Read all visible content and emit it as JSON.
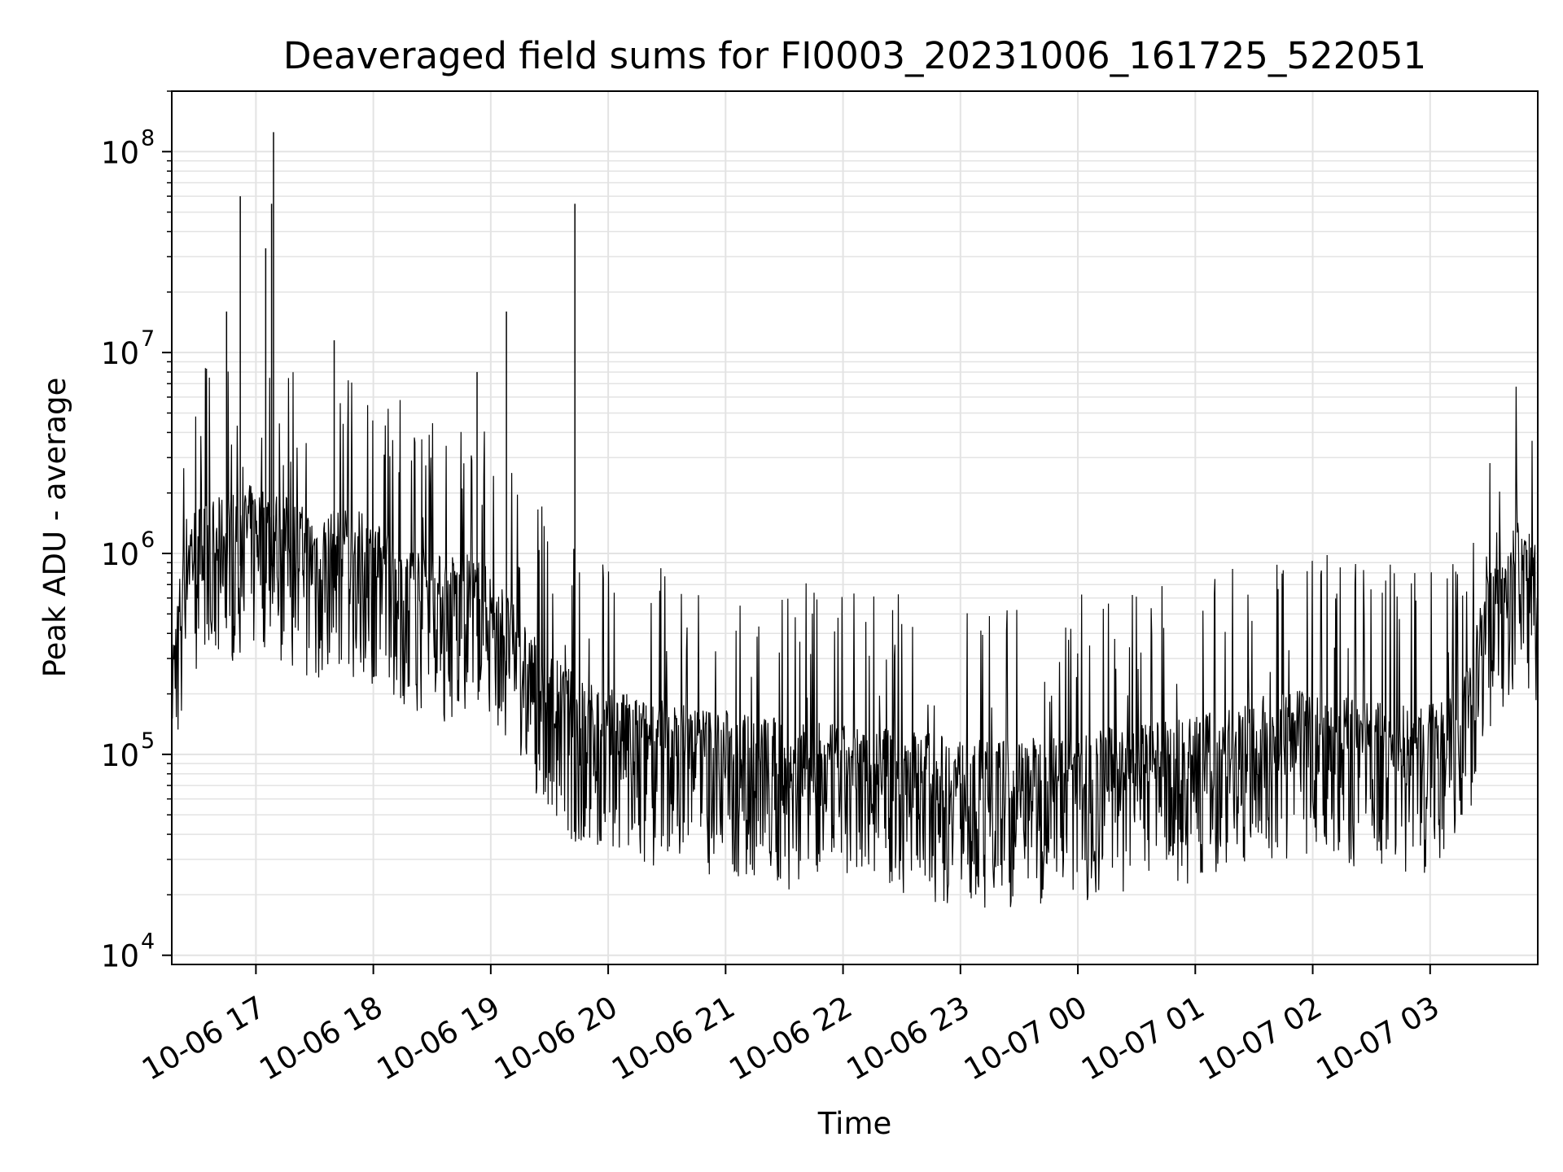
{
  "chart_data": {
    "type": "line",
    "title": "Deaveraged field sums for FI0003_20231006_161725_522051",
    "xlabel": "Time",
    "ylabel": "Peak ADU - average",
    "yscale": "log",
    "ylim": [
      9000,
      200000000
    ],
    "xlim": [
      "2023-10-06 16:17",
      "2023-10-07 03:55"
    ],
    "grid": true,
    "line_color": "#000000",
    "grid_color": "#e3e3e3",
    "y_ticks": [
      {
        "value": 10000,
        "base": "10",
        "exp": "4"
      },
      {
        "value": 100000,
        "base": "10",
        "exp": "5"
      },
      {
        "value": 1000000,
        "base": "10",
        "exp": "6"
      },
      {
        "value": 10000000,
        "base": "10",
        "exp": "7"
      },
      {
        "value": 100000000,
        "base": "10",
        "exp": "8"
      }
    ],
    "x_ticks": [
      {
        "time": "2023-10-06 17:00",
        "label": "10-06 17"
      },
      {
        "time": "2023-10-06 18:00",
        "label": "10-06 18"
      },
      {
        "time": "2023-10-06 19:00",
        "label": "10-06 19"
      },
      {
        "time": "2023-10-06 20:00",
        "label": "10-06 20"
      },
      {
        "time": "2023-10-06 21:00",
        "label": "10-06 21"
      },
      {
        "time": "2023-10-06 22:00",
        "label": "10-06 22"
      },
      {
        "time": "2023-10-06 23:00",
        "label": "10-06 23"
      },
      {
        "time": "2023-10-07 00:00",
        "label": "10-07 00"
      },
      {
        "time": "2023-10-07 01:00",
        "label": "10-07 01"
      },
      {
        "time": "2023-10-07 02:00",
        "label": "10-07 02"
      },
      {
        "time": "2023-10-07 03:00",
        "label": "10-07 03"
      }
    ],
    "series": [
      {
        "x": [
          "2023-10-06 16:17",
          "2023-10-06 16:25",
          "2023-10-06 16:35",
          "2023-10-06 16:45",
          "2023-10-06 16:55",
          "2023-10-06 17:05",
          "2023-10-06 17:15",
          "2023-10-06 17:25",
          "2023-10-06 17:35",
          "2023-10-06 17:45",
          "2023-10-06 17:55",
          "2023-10-06 18:05",
          "2023-10-06 18:15",
          "2023-10-06 18:25",
          "2023-10-06 18:35",
          "2023-10-06 18:45",
          "2023-10-06 18:55",
          "2023-10-06 19:05",
          "2023-10-06 19:15",
          "2023-10-06 19:25",
          "2023-10-06 19:35",
          "2023-10-06 19:45",
          "2023-10-06 19:55",
          "2023-10-06 20:15",
          "2023-10-06 20:35",
          "2023-10-06 20:55",
          "2023-10-06 21:15",
          "2023-10-06 21:35",
          "2023-10-06 21:55",
          "2023-10-06 22:15",
          "2023-10-06 22:35",
          "2023-10-06 22:55",
          "2023-10-06 23:15",
          "2023-10-06 23:35",
          "2023-10-06 23:55",
          "2023-10-07 00:15",
          "2023-10-07 00:35",
          "2023-10-07 00:55",
          "2023-10-07 01:15",
          "2023-10-07 01:35",
          "2023-10-07 01:55",
          "2023-10-07 02:15",
          "2023-10-07 02:35",
          "2023-10-07 02:55",
          "2023-10-07 03:15",
          "2023-10-07 03:30",
          "2023-10-07 03:45",
          "2023-10-07 03:55"
        ],
        "y": [
          150000,
          700000,
          750000,
          800000,
          900000,
          900000,
          800000,
          700000,
          650000,
          700000,
          650000,
          550000,
          500000,
          450000,
          400000,
          420000,
          380000,
          300000,
          200000,
          150000,
          120000,
          100000,
          90000,
          80000,
          75000,
          70000,
          65000,
          60000,
          58000,
          55000,
          55000,
          50000,
          48000,
          50000,
          52000,
          55000,
          58000,
          62000,
          70000,
          80000,
          85000,
          80000,
          75000,
          70000,
          80000,
          350000,
          600000,
          500000
        ]
      }
    ],
    "spikes": [
      {
        "x": "2023-10-06 16:45",
        "y": 16000000
      },
      {
        "x": "2023-10-06 16:52",
        "y": 60000000
      },
      {
        "x": "2023-10-06 17:05",
        "y": 33000000
      },
      {
        "x": "2023-10-06 17:08",
        "y": 55000000
      },
      {
        "x": "2023-10-06 17:09",
        "y": 125000000
      },
      {
        "x": "2023-10-06 17:40",
        "y": 11500000
      },
      {
        "x": "2023-10-06 18:53",
        "y": 8000000
      },
      {
        "x": "2023-10-06 19:08",
        "y": 16000000
      },
      {
        "x": "2023-10-06 19:43",
        "y": 55000000
      }
    ]
  }
}
